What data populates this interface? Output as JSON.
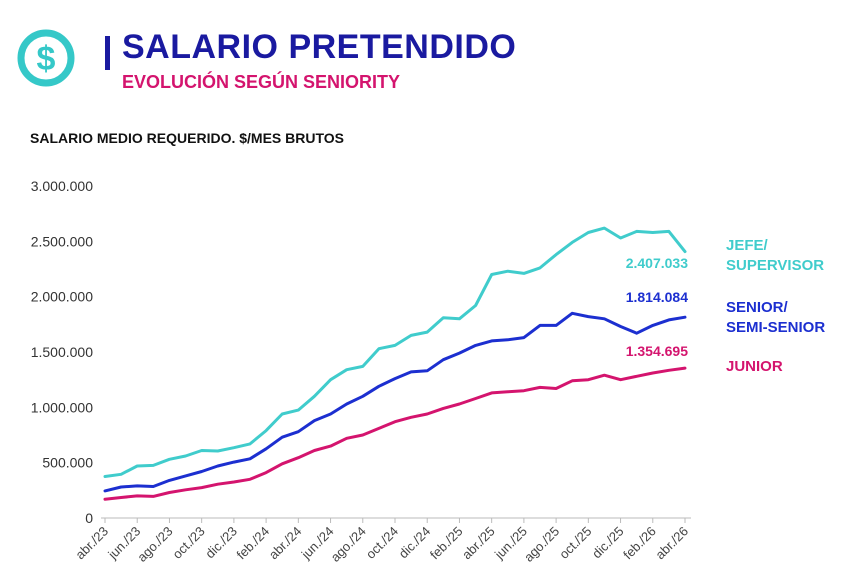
{
  "header": {
    "title": "SALARIO PRETENDIDO",
    "subtitle": "EVOLUCIÓN SEGÚN SENIORITY",
    "logo_icon": "dollar-circle-icon",
    "colors": {
      "title": "#1a1aa0",
      "subtitle": "#d4146e",
      "logo": "#35c8c8"
    }
  },
  "chart_data": {
    "type": "line",
    "title": "SALARIO MEDIO REQUERIDO. $/MES BRUTOS",
    "x": [
      "abr./23",
      "may./23",
      "jun./23",
      "jul./23",
      "ago./23",
      "sep./23",
      "oct./23",
      "nov./23",
      "dic./23",
      "ene./24",
      "feb./24",
      "mar./24",
      "abr./24",
      "may./24",
      "jun./24",
      "jul./24",
      "ago./24",
      "sep./24",
      "oct./24",
      "nov./24",
      "dic./24",
      "ene./25",
      "feb./25",
      "mar./25",
      "abr./25",
      "may./25",
      "jun./25",
      "jul./25",
      "ago./25",
      "sep./25",
      "oct./25",
      "nov./25",
      "dic./25",
      "ene./26",
      "feb./26",
      "mar./26",
      "abr./26"
    ],
    "xtick_labels": [
      "abr./23",
      "jun./23",
      "ago./23",
      "oct./23",
      "dic./23",
      "feb./24",
      "abr./24",
      "jun./24",
      "ago./24",
      "oct./24",
      "dic./24",
      "feb./25",
      "abr./25",
      "jun./25",
      "ago./25",
      "oct./25",
      "dic./25",
      "feb./26",
      "abr./26"
    ],
    "ylim": [
      0,
      3000000
    ],
    "yticks": [
      0,
      500000,
      1000000,
      1500000,
      2000000,
      2500000,
      3000000
    ],
    "ytick_labels": [
      "0",
      "500.000",
      "1.000.000",
      "1.500.000",
      "2.000.000",
      "2.500.000",
      "3.000.000"
    ],
    "grid": false,
    "series": [
      {
        "name_lines": [
          "JEFE/",
          "SUPERVISOR"
        ],
        "color": "#40cccc",
        "end_label": "2.407.033",
        "values": [
          375000,
          395000,
          470000,
          475000,
          530000,
          560000,
          610000,
          605000,
          635000,
          670000,
          790000,
          940000,
          975000,
          1100000,
          1250000,
          1340000,
          1370000,
          1530000,
          1560000,
          1650000,
          1680000,
          1810000,
          1800000,
          1920000,
          2200000,
          2230000,
          2210000,
          2260000,
          2380000,
          2490000,
          2580000,
          2620000,
          2530000,
          2590000,
          2580000,
          2590000,
          2407033
        ]
      },
      {
        "name_lines": [
          "SENIOR/",
          "SEMI-SENIOR"
        ],
        "color": "#1c2fd0",
        "end_label": "1.814.084",
        "values": [
          245000,
          280000,
          290000,
          285000,
          340000,
          380000,
          420000,
          470000,
          505000,
          535000,
          625000,
          730000,
          780000,
          880000,
          940000,
          1030000,
          1100000,
          1190000,
          1260000,
          1320000,
          1330000,
          1430000,
          1490000,
          1560000,
          1600000,
          1610000,
          1630000,
          1740000,
          1740000,
          1850000,
          1820000,
          1800000,
          1730000,
          1670000,
          1740000,
          1790000,
          1814084
        ]
      },
      {
        "name_lines": [
          "JUNIOR"
        ],
        "color": "#d4146e",
        "end_label": "1.354.695",
        "values": [
          170000,
          185000,
          200000,
          195000,
          230000,
          255000,
          275000,
          305000,
          325000,
          350000,
          410000,
          490000,
          545000,
          610000,
          650000,
          720000,
          750000,
          810000,
          870000,
          910000,
          940000,
          990000,
          1030000,
          1080000,
          1130000,
          1140000,
          1150000,
          1180000,
          1170000,
          1240000,
          1250000,
          1290000,
          1250000,
          1280000,
          1310000,
          1335000,
          1354695
        ]
      }
    ]
  }
}
